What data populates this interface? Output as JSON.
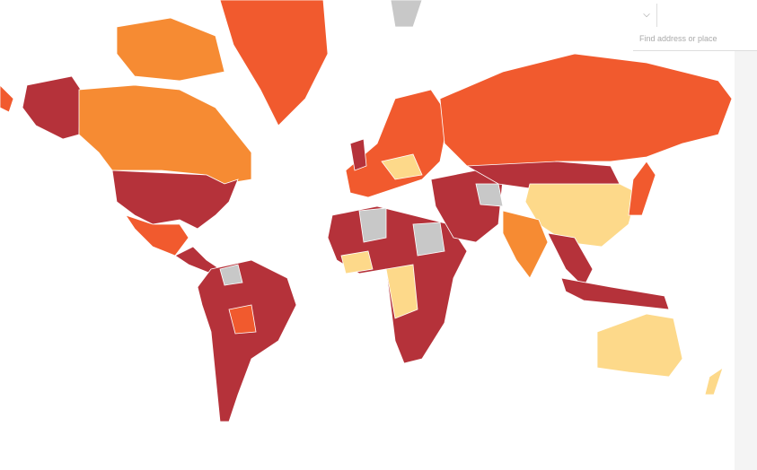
{
  "search": {
    "placeholder": "Find address or place"
  }
}
